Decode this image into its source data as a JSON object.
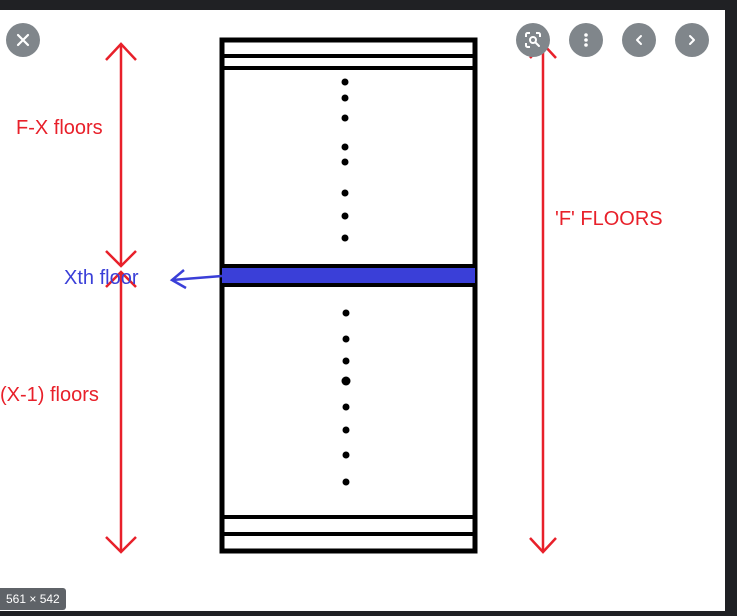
{
  "viewer": {
    "size_label": "561 × 542",
    "buttons": {
      "close": "close-icon",
      "lens": "lens-icon",
      "more": "more-vert-icon",
      "prev": "chevron-left-icon",
      "next": "chevron-right-icon"
    }
  },
  "diagram": {
    "label_top": "F-X floors",
    "label_xth": "Xth floor",
    "label_bottom": "(X-1) floors",
    "label_total": "'F' FLOORS",
    "colors": {
      "red": "#e8202a",
      "blue": "#3a3fd8",
      "black": "#000000"
    }
  }
}
